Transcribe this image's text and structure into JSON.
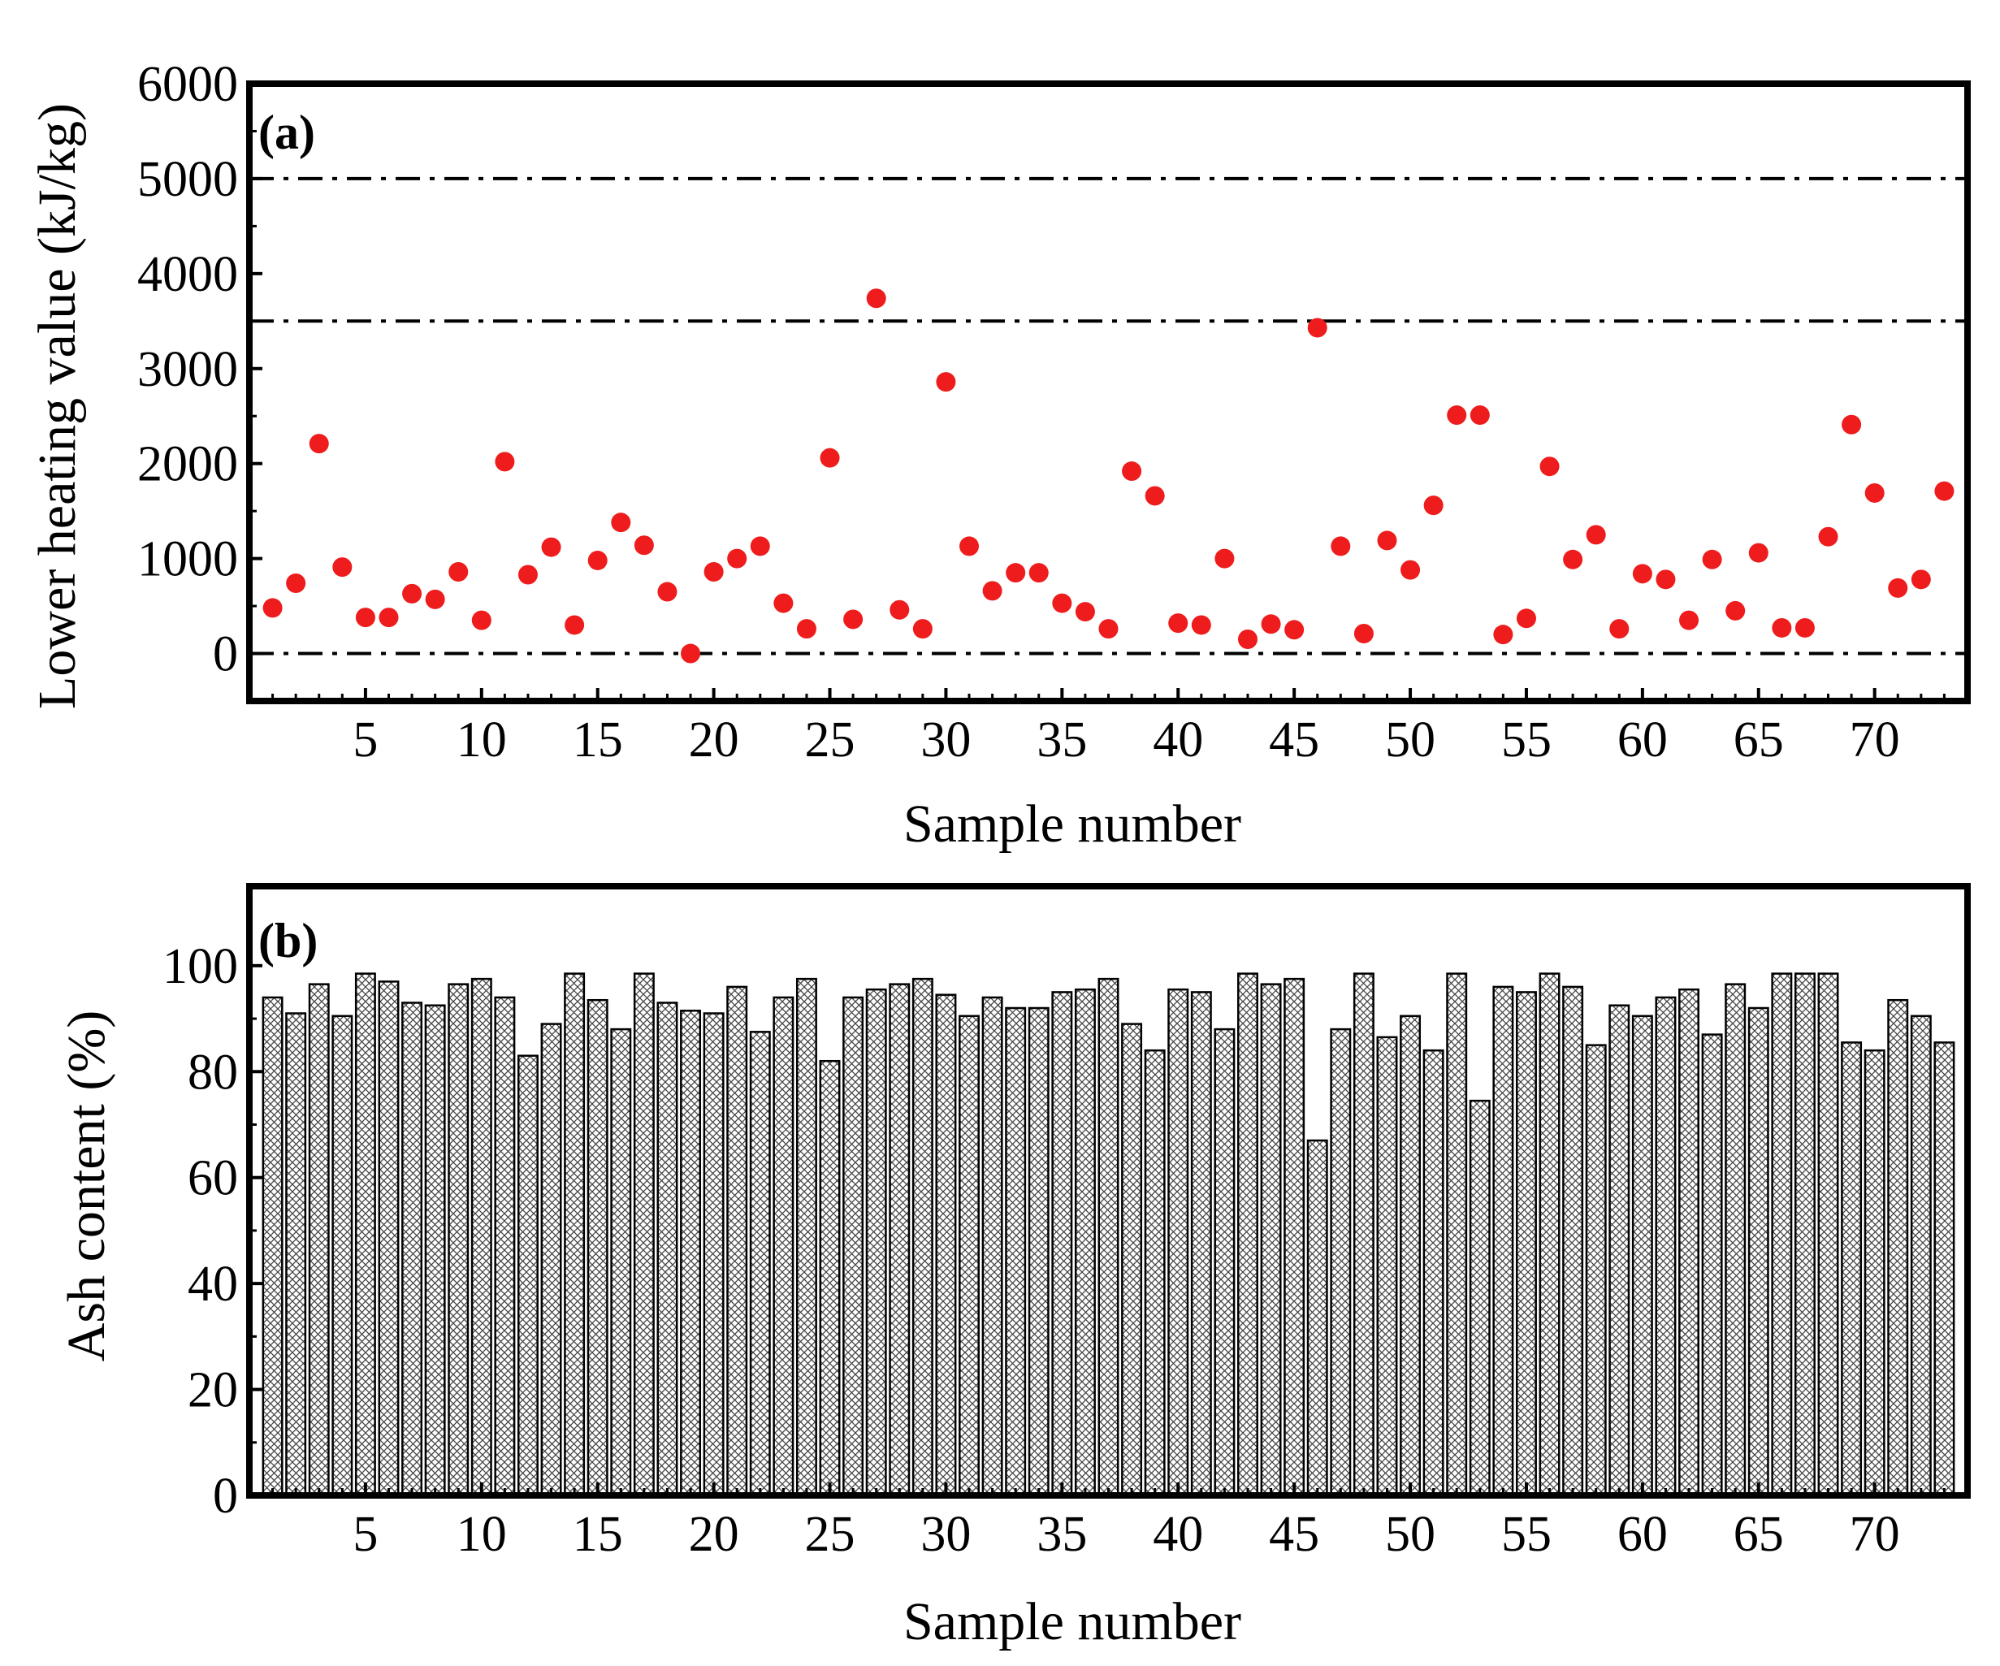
{
  "chart_data": [
    {
      "type": "scatter",
      "panel_label": "(a)",
      "xlabel": "Sample number",
      "ylabel": "Lower heating value (kJ/kg)",
      "xlim": [
        0,
        74
      ],
      "ylim": [
        -500,
        6000
      ],
      "x_ticks": [
        "5",
        "10",
        "15",
        "20",
        "25",
        "30",
        "35",
        "40",
        "45",
        "50",
        "55",
        "60",
        "65",
        "70"
      ],
      "y_ticks": [
        "0",
        "1000",
        "2000",
        "3000",
        "4000",
        "5000",
        "6000"
      ],
      "reference_lines": [
        0,
        3500,
        5000
      ],
      "marker_color": "#ee1c1c",
      "x": [
        1,
        2,
        3,
        4,
        5,
        6,
        7,
        8,
        9,
        10,
        11,
        12,
        13,
        14,
        15,
        16,
        17,
        18,
        19,
        20,
        21,
        22,
        23,
        24,
        25,
        26,
        27,
        28,
        29,
        30,
        31,
        32,
        33,
        34,
        35,
        36,
        37,
        38,
        39,
        40,
        41,
        42,
        43,
        44,
        45,
        46,
        47,
        48,
        49,
        50,
        51,
        52,
        53,
        54,
        55,
        56,
        57,
        58,
        59,
        60,
        61,
        62,
        63,
        64,
        65,
        66,
        67,
        68,
        69,
        70,
        71,
        72,
        73
      ],
      "values": [
        480,
        740,
        2210,
        910,
        380,
        380,
        630,
        570,
        860,
        350,
        2020,
        830,
        1120,
        300,
        980,
        1380,
        1140,
        650,
        0,
        860,
        1000,
        1130,
        530,
        260,
        2060,
        360,
        3740,
        460,
        260,
        2860,
        1130,
        660,
        850,
        850,
        530,
        440,
        260,
        1920,
        1660,
        320,
        300,
        1000,
        150,
        310,
        250,
        3430,
        1130,
        210,
        1190,
        880,
        1560,
        2510,
        2510,
        200,
        370,
        1970,
        990,
        1250,
        260,
        840,
        780,
        350,
        990,
        450,
        1060,
        270,
        270,
        1230,
        2410,
        1690,
        690,
        780,
        1710
      ]
    },
    {
      "type": "bar",
      "panel_label": "(b)",
      "xlabel": "Sample number",
      "ylabel": "Ash content (%)",
      "xlim": [
        0,
        74
      ],
      "ylim": [
        0,
        115
      ],
      "x_ticks": [
        "5",
        "10",
        "15",
        "20",
        "25",
        "30",
        "35",
        "40",
        "45",
        "50",
        "55",
        "60",
        "65",
        "70"
      ],
      "y_ticks": [
        "0",
        "20",
        "40",
        "60",
        "80",
        "100"
      ],
      "fill": "crosshatch",
      "x": [
        1,
        2,
        3,
        4,
        5,
        6,
        7,
        8,
        9,
        10,
        11,
        12,
        13,
        14,
        15,
        16,
        17,
        18,
        19,
        20,
        21,
        22,
        23,
        24,
        25,
        26,
        27,
        28,
        29,
        30,
        31,
        32,
        33,
        34,
        35,
        36,
        37,
        38,
        39,
        40,
        41,
        42,
        43,
        44,
        45,
        46,
        47,
        48,
        49,
        50,
        51,
        52,
        53,
        54,
        55,
        56,
        57,
        58,
        59,
        60,
        61,
        62,
        63,
        64,
        65,
        66,
        67,
        68,
        69,
        70,
        71,
        72,
        73
      ],
      "values": [
        94,
        91,
        96.5,
        90.5,
        98.5,
        97,
        93,
        92.5,
        96.5,
        97.5,
        94,
        83,
        89,
        98.5,
        93.5,
        88,
        98.5,
        93,
        91.5,
        91,
        96,
        87.5,
        94,
        97.5,
        82,
        94,
        95.5,
        96.5,
        97.5,
        94.5,
        90.5,
        94,
        92,
        92,
        95,
        95.5,
        97.5,
        89,
        84,
        95.5,
        95,
        88,
        98.5,
        96.5,
        97.5,
        67,
        88,
        98.5,
        86.5,
        90.5,
        84,
        98.5,
        74.5,
        96,
        95,
        98.5,
        96,
        85,
        92.5,
        90.5,
        94,
        95.5,
        87,
        96.5,
        92,
        98.5,
        98.5,
        98.5,
        85.5,
        84,
        93.5,
        90.5,
        85.5
      ]
    }
  ]
}
